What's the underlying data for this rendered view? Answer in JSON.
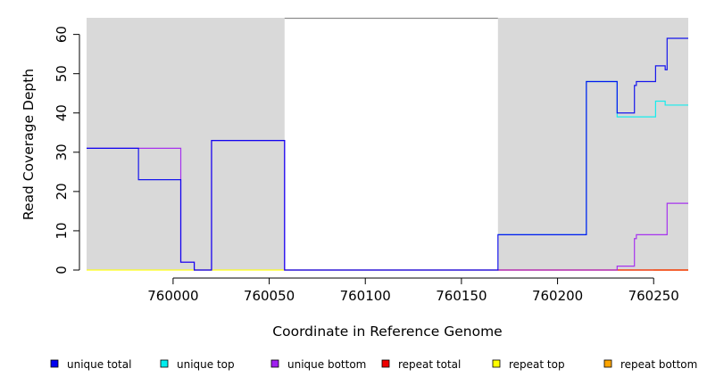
{
  "chart_data": {
    "type": "line",
    "xlabel": "Coordinate in Reference Genome",
    "ylabel": "Read Coverage Depth",
    "xlim": [
      759955,
      760268
    ],
    "ylim": [
      0,
      64
    ],
    "x_ticks": [
      760000,
      760050,
      760100,
      760150,
      760200,
      760250
    ],
    "y_ticks": [
      0,
      10,
      20,
      30,
      40,
      50,
      60
    ],
    "shaded_regions": [
      [
        759955,
        760058
      ],
      [
        760169,
        760268
      ]
    ],
    "shade_color": "#d9d9d9",
    "legend_position": "bottom",
    "legend": [
      {
        "label": "unique total",
        "color": "#0000ee"
      },
      {
        "label": "unique top",
        "color": "#00eeee"
      },
      {
        "label": "unique bottom",
        "color": "#a020f0"
      },
      {
        "label": "repeat total",
        "color": "#ee0000"
      },
      {
        "label": "repeat top",
        "color": "#ffff00"
      },
      {
        "label": "repeat bottom",
        "color": "#ffa500"
      }
    ],
    "series": [
      {
        "name": "unique total",
        "color": "#0000ee",
        "x": [
          759955,
          759982,
          759982,
          760004,
          760004,
          760011,
          760011,
          760020,
          760020,
          760058,
          760058,
          760169,
          760169,
          760215,
          760215,
          760231,
          760231,
          760240,
          760240,
          760241,
          760241,
          760251,
          760251,
          760256,
          760256,
          760257,
          760257,
          760268
        ],
        "y": [
          31,
          31,
          23,
          23,
          2,
          2,
          0,
          0,
          33,
          33,
          0,
          0,
          9,
          9,
          48,
          48,
          40,
          40,
          47,
          47,
          48,
          48,
          52,
          52,
          51,
          51,
          59,
          59
        ]
      },
      {
        "name": "unique top",
        "color": "#00eeee",
        "x": [
          760169,
          760215,
          760215,
          760231,
          760231,
          760251,
          760251,
          760256,
          760256,
          760268
        ],
        "y": [
          9,
          9,
          48,
          48,
          39,
          39,
          43,
          43,
          42,
          42
        ]
      },
      {
        "name": "unique bottom",
        "color": "#a020f0",
        "x": [
          759955,
          760004,
          760004,
          760011,
          760011,
          760020,
          760020,
          760058,
          760058,
          760231,
          760231,
          760240,
          760240,
          760241,
          760241,
          760257,
          760257,
          760268
        ],
        "y": [
          31,
          31,
          2,
          2,
          0,
          0,
          33,
          33,
          0,
          0,
          1,
          1,
          8,
          8,
          9,
          9,
          17,
          17
        ]
      },
      {
        "name": "repeat total",
        "color": "#ee0000",
        "x": [
          760169,
          760268
        ],
        "y": [
          0,
          0
        ]
      },
      {
        "name": "repeat top",
        "color": "#ffff00",
        "x": [
          759955,
          760268
        ],
        "y": [
          0,
          0
        ]
      },
      {
        "name": "repeat bottom",
        "color": "#ffa500",
        "x": [
          760250,
          760268
        ],
        "y": [
          0,
          0
        ]
      }
    ]
  }
}
